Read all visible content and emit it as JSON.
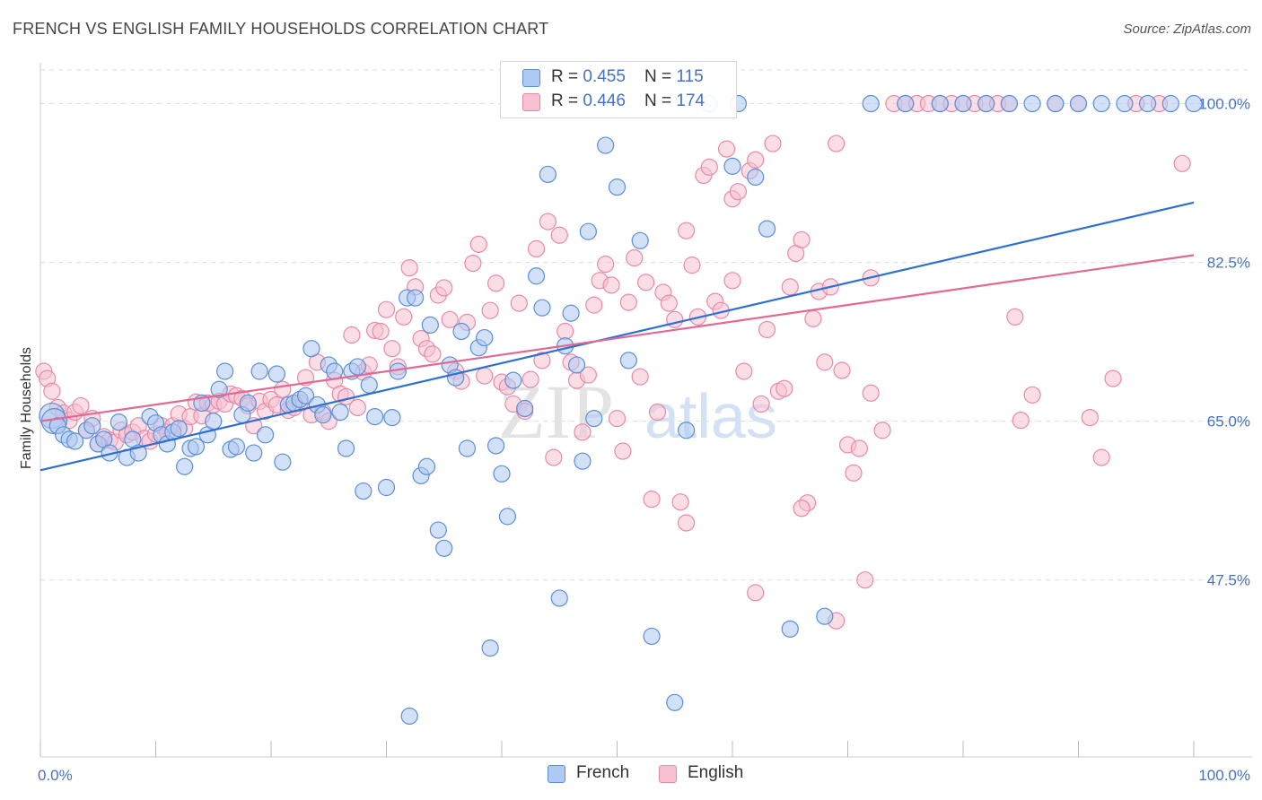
{
  "title": "FRENCH VS ENGLISH FAMILY HOUSEHOLDS CORRELATION CHART",
  "source": "Source: ZipAtlas.com",
  "watermark": {
    "zip": "ZIP",
    "atlas": "atlas"
  },
  "colors": {
    "french_fill": "#aec9f2",
    "french_stroke": "#5b8fd6",
    "french_line": "#2f6fd0",
    "english_fill": "#f7c1d2",
    "english_stroke": "#e78aa8",
    "english_line": "#e06a94",
    "tick_text": "#4472c4",
    "grid": "#dddddd"
  },
  "legend": {
    "rows": [
      {
        "r_label": "R = ",
        "r_value": "0.455",
        "n_label": "N = ",
        "n_value": "115"
      },
      {
        "r_label": "R = ",
        "r_value": "0.446",
        "n_label": "N = ",
        "n_value": "174"
      }
    ]
  },
  "bottom_legend": {
    "french": "French",
    "english": "English"
  },
  "chart_data": {
    "type": "scatter",
    "xlabel": "",
    "ylabel": "Family Households",
    "xlim": [
      0,
      100
    ],
    "ylim": [
      28,
      104.5
    ],
    "x_tick_labels": [
      "0.0%",
      "100.0%"
    ],
    "y_ticks": [
      47.5,
      65.0,
      82.5,
      100.0
    ],
    "y_tick_labels": [
      "47.5%",
      "65.0%",
      "82.5%",
      "100.0%"
    ],
    "grid": true,
    "legend_placement": "top-center",
    "series": [
      {
        "name": "French",
        "trend": {
          "x0": 0,
          "y0": 59.6,
          "x1": 100,
          "y1": 89.1
        },
        "points": [
          [
            1.0,
            65.6
          ],
          [
            1.2,
            65.0
          ],
          [
            1.5,
            64.5
          ],
          [
            2.0,
            63.5
          ],
          [
            2.5,
            63.0
          ],
          [
            3.0,
            62.8
          ],
          [
            4.0,
            64.0
          ],
          [
            4.5,
            64.5
          ],
          [
            5.0,
            62.5
          ],
          [
            5.5,
            63.0
          ],
          [
            6.0,
            61.5
          ],
          [
            6.8,
            64.9
          ],
          [
            7.5,
            61.0
          ],
          [
            8.0,
            63.0
          ],
          [
            8.5,
            61.5
          ],
          [
            9.5,
            65.5
          ],
          [
            10.0,
            64.8
          ],
          [
            10.5,
            63.5
          ],
          [
            11.0,
            62.5
          ],
          [
            11.5,
            63.8
          ],
          [
            12.0,
            64.2
          ],
          [
            12.5,
            60.0
          ],
          [
            13.0,
            62.0
          ],
          [
            13.5,
            62.2
          ],
          [
            14.0,
            67.0
          ],
          [
            14.5,
            63.5
          ],
          [
            15.0,
            65.0
          ],
          [
            15.5,
            68.5
          ],
          [
            16.0,
            70.5
          ],
          [
            16.5,
            61.9
          ],
          [
            17.0,
            62.2
          ],
          [
            17.5,
            65.7
          ],
          [
            18.0,
            67.0
          ],
          [
            18.5,
            61.5
          ],
          [
            19.0,
            70.5
          ],
          [
            19.5,
            63.5
          ],
          [
            20.5,
            70.2
          ],
          [
            21.0,
            60.5
          ],
          [
            21.5,
            66.8
          ],
          [
            22.0,
            67.0
          ],
          [
            22.5,
            67.4
          ],
          [
            23.0,
            67.8
          ],
          [
            23.5,
            73.0
          ],
          [
            24.0,
            66.8
          ],
          [
            24.5,
            65.7
          ],
          [
            25.0,
            71.2
          ],
          [
            25.5,
            70.5
          ],
          [
            26.0,
            66.0
          ],
          [
            26.5,
            62.0
          ],
          [
            27.0,
            70.5
          ],
          [
            27.5,
            71.0
          ],
          [
            28.0,
            57.3
          ],
          [
            28.5,
            69.0
          ],
          [
            29.0,
            65.5
          ],
          [
            30.0,
            57.7
          ],
          [
            30.5,
            65.4
          ],
          [
            31.0,
            70.5
          ],
          [
            31.8,
            78.6
          ],
          [
            32.0,
            32.5
          ],
          [
            32.5,
            78.6
          ],
          [
            33.0,
            59.0
          ],
          [
            33.5,
            60.0
          ],
          [
            33.8,
            75.6
          ],
          [
            34.5,
            53.0
          ],
          [
            35.0,
            51.0
          ],
          [
            35.5,
            71.2
          ],
          [
            36.0,
            69.8
          ],
          [
            36.5,
            74.9
          ],
          [
            37.0,
            62.0
          ],
          [
            38.0,
            73.1
          ],
          [
            38.5,
            74.2
          ],
          [
            39.0,
            40.0
          ],
          [
            39.5,
            62.3
          ],
          [
            40.0,
            59.2
          ],
          [
            40.5,
            54.5
          ],
          [
            41.0,
            69.5
          ],
          [
            42.0,
            66.4
          ],
          [
            43.0,
            81.0
          ],
          [
            43.5,
            77.5
          ],
          [
            44.0,
            92.2
          ],
          [
            45.0,
            45.5
          ],
          [
            45.5,
            73.3
          ],
          [
            46.0,
            76.9
          ],
          [
            46.5,
            71.2
          ],
          [
            47.0,
            60.6
          ],
          [
            47.5,
            85.9
          ],
          [
            48.0,
            65.3
          ],
          [
            49.0,
            95.4
          ],
          [
            50.0,
            90.8
          ],
          [
            51.0,
            71.7
          ],
          [
            52.0,
            84.9
          ],
          [
            53.0,
            41.3
          ],
          [
            55.0,
            34.0
          ],
          [
            60.0,
            93.1
          ],
          [
            62.0,
            91.9
          ],
          [
            63.0,
            86.2
          ],
          [
            65.0,
            42.1
          ],
          [
            68.0,
            43.5
          ],
          [
            72.0,
            100.0
          ],
          [
            75.0,
            100.0
          ],
          [
            78.0,
            100.0
          ],
          [
            80.0,
            100.0
          ],
          [
            82.0,
            100.0
          ],
          [
            84.0,
            100.0
          ],
          [
            86.0,
            100.0
          ],
          [
            88.0,
            100.0
          ],
          [
            90.0,
            100.0
          ],
          [
            92.0,
            100.0
          ],
          [
            94.0,
            100.0
          ],
          [
            96.0,
            100.0
          ],
          [
            98.0,
            100.0
          ],
          [
            100.0,
            100.0
          ],
          [
            58.0,
            100.0
          ],
          [
            60.5,
            100.0
          ],
          [
            56.0,
            64.0
          ]
        ]
      },
      {
        "name": "English",
        "trend": {
          "x0": 0,
          "y0": 65.0,
          "x1": 100,
          "y1": 83.3
        },
        "points": [
          [
            0.3,
            70.5
          ],
          [
            0.6,
            69.7
          ],
          [
            1.0,
            68.3
          ],
          [
            1.5,
            66.5
          ],
          [
            2.0,
            65.9
          ],
          [
            2.5,
            65.1
          ],
          [
            3.0,
            66.0
          ],
          [
            3.5,
            66.7
          ],
          [
            4.0,
            64.0
          ],
          [
            4.5,
            65.3
          ],
          [
            5.0,
            62.5
          ],
          [
            5.5,
            63.3
          ],
          [
            6.0,
            62.9
          ],
          [
            6.5,
            62.7
          ],
          [
            7.0,
            64.0
          ],
          [
            7.5,
            63.5
          ],
          [
            8.0,
            63.8
          ],
          [
            8.5,
            64.5
          ],
          [
            9.0,
            63.1
          ],
          [
            9.5,
            62.8
          ],
          [
            10.0,
            63.6
          ],
          [
            10.5,
            64.5
          ],
          [
            11.0,
            63.8
          ],
          [
            11.5,
            64.5
          ],
          [
            12.0,
            65.8
          ],
          [
            12.5,
            64.2
          ],
          [
            13.0,
            65.5
          ],
          [
            13.5,
            67.1
          ],
          [
            14.0,
            65.6
          ],
          [
            14.5,
            67.0
          ],
          [
            15.0,
            66.8
          ],
          [
            15.5,
            67.2
          ],
          [
            16.0,
            66.9
          ],
          [
            16.5,
            68.0
          ],
          [
            17.0,
            67.8
          ],
          [
            17.5,
            67.5
          ],
          [
            18.0,
            66.7
          ],
          [
            18.5,
            64.5
          ],
          [
            19.0,
            67.2
          ],
          [
            19.5,
            66.1
          ],
          [
            20.0,
            67.4
          ],
          [
            20.5,
            66.8
          ],
          [
            21.0,
            68.5
          ],
          [
            21.5,
            66.2
          ],
          [
            22.0,
            66.5
          ],
          [
            22.5,
            67.0
          ],
          [
            23.0,
            69.8
          ],
          [
            23.5,
            65.7
          ],
          [
            24.0,
            71.5
          ],
          [
            24.5,
            66.0
          ],
          [
            25.0,
            65.0
          ],
          [
            25.5,
            69.5
          ],
          [
            26.0,
            68.0
          ],
          [
            26.5,
            67.7
          ],
          [
            27.0,
            74.5
          ],
          [
            27.5,
            66.5
          ],
          [
            28.0,
            70.4
          ],
          [
            28.5,
            71.2
          ],
          [
            29.0,
            75.0
          ],
          [
            29.5,
            74.9
          ],
          [
            30.0,
            77.3
          ],
          [
            30.5,
            73.0
          ],
          [
            31.0,
            71.0
          ],
          [
            31.5,
            76.5
          ],
          [
            32.0,
            81.9
          ],
          [
            32.5,
            79.8
          ],
          [
            33.0,
            74.1
          ],
          [
            33.5,
            73.0
          ],
          [
            34.0,
            72.4
          ],
          [
            34.5,
            78.9
          ],
          [
            35.0,
            79.7
          ],
          [
            35.5,
            76.2
          ],
          [
            36.0,
            70.5
          ],
          [
            36.5,
            69.4
          ],
          [
            37.0,
            75.9
          ],
          [
            37.5,
            82.4
          ],
          [
            38.0,
            84.5
          ],
          [
            38.5,
            70.0
          ],
          [
            39.0,
            77.2
          ],
          [
            39.5,
            80.2
          ],
          [
            40.0,
            69.3
          ],
          [
            40.5,
            68.8
          ],
          [
            41.0,
            66.9
          ],
          [
            41.5,
            78.0
          ],
          [
            42.0,
            66.1
          ],
          [
            42.5,
            69.6
          ],
          [
            43.0,
            84.0
          ],
          [
            43.5,
            71.7
          ],
          [
            44.0,
            87.0
          ],
          [
            44.5,
            61.0
          ],
          [
            45.0,
            85.5
          ],
          [
            45.5,
            74.9
          ],
          [
            46.0,
            71.5
          ],
          [
            46.5,
            69.5
          ],
          [
            47.0,
            63.8
          ],
          [
            47.5,
            70.1
          ],
          [
            48.0,
            77.8
          ],
          [
            48.5,
            80.5
          ],
          [
            49.0,
            82.3
          ],
          [
            49.5,
            80.0
          ],
          [
            50.0,
            65.3
          ],
          [
            50.5,
            61.7
          ],
          [
            51.0,
            78.1
          ],
          [
            51.5,
            83.0
          ],
          [
            52.0,
            69.9
          ],
          [
            52.5,
            80.3
          ],
          [
            53.0,
            56.4
          ],
          [
            53.5,
            66.0
          ],
          [
            54.0,
            79.2
          ],
          [
            54.5,
            78.0
          ],
          [
            55.0,
            76.2
          ],
          [
            55.5,
            56.1
          ],
          [
            56.0,
            86.0
          ],
          [
            56.5,
            82.2
          ],
          [
            57.0,
            76.5
          ],
          [
            57.5,
            92.1
          ],
          [
            58.0,
            93.0
          ],
          [
            58.5,
            78.2
          ],
          [
            59.0,
            77.2
          ],
          [
            59.5,
            95.0
          ],
          [
            60.0,
            89.5
          ],
          [
            60.5,
            90.3
          ],
          [
            61.0,
            70.5
          ],
          [
            61.5,
            92.6
          ],
          [
            62.0,
            93.8
          ],
          [
            62.5,
            66.9
          ],
          [
            63.0,
            75.1
          ],
          [
            63.5,
            95.6
          ],
          [
            64.0,
            68.3
          ],
          [
            64.5,
            68.6
          ],
          [
            65.0,
            79.8
          ],
          [
            65.5,
            83.5
          ],
          [
            66.0,
            85.0
          ],
          [
            66.5,
            56.0
          ],
          [
            67.0,
            76.3
          ],
          [
            67.5,
            79.3
          ],
          [
            68.0,
            71.5
          ],
          [
            68.5,
            79.8
          ],
          [
            69.0,
            95.6
          ],
          [
            69.5,
            70.6
          ],
          [
            70.0,
            62.4
          ],
          [
            70.5,
            59.3
          ],
          [
            71.0,
            62.0
          ],
          [
            71.5,
            47.5
          ],
          [
            72.0,
            68.1
          ],
          [
            73.0,
            64.0
          ],
          [
            74.0,
            100.0
          ],
          [
            75.0,
            100.0
          ],
          [
            76.0,
            100.0
          ],
          [
            77.0,
            100.0
          ],
          [
            78.0,
            100.0
          ],
          [
            79.0,
            100.0
          ],
          [
            80.0,
            100.0
          ],
          [
            81.0,
            100.0
          ],
          [
            82.0,
            100.0
          ],
          [
            83.0,
            100.0
          ],
          [
            84.0,
            100.0
          ],
          [
            85.0,
            65.1
          ],
          [
            86.0,
            67.9
          ],
          [
            88.0,
            100.0
          ],
          [
            90.0,
            100.0
          ],
          [
            91.0,
            65.4
          ],
          [
            92.0,
            61.0
          ],
          [
            93.0,
            69.7
          ],
          [
            95.0,
            100.0
          ],
          [
            97.0,
            100.0
          ],
          [
            99.0,
            93.4
          ],
          [
            56.0,
            53.8
          ],
          [
            62.0,
            46.1
          ],
          [
            66.0,
            55.4
          ],
          [
            69.0,
            43.0
          ],
          [
            60.0,
            80.5
          ],
          [
            72.0,
            80.8
          ],
          [
            84.5,
            76.5
          ]
        ]
      }
    ]
  }
}
